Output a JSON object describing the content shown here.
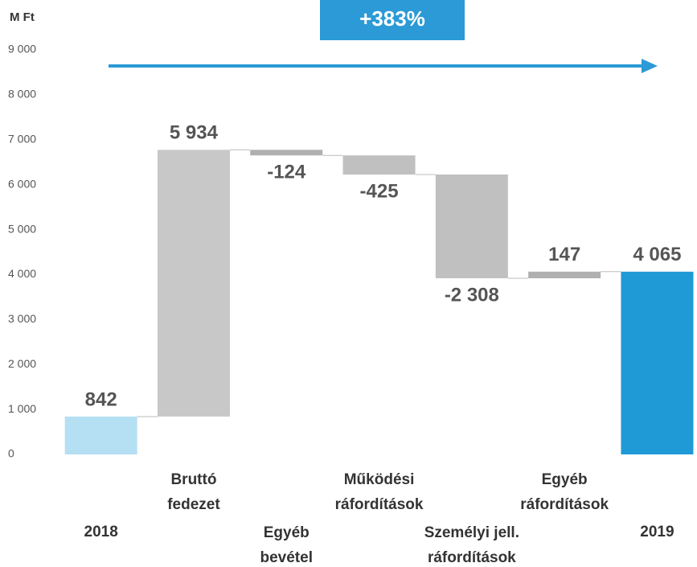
{
  "chart_data": {
    "type": "waterfall",
    "unit_label": "M Ft",
    "annotation": "+383%",
    "categories": [
      [
        "2018"
      ],
      [
        "Bruttó",
        "fedezet"
      ],
      [
        "Egyéb",
        "bevétel"
      ],
      [
        "Működési",
        "ráfordítások"
      ],
      [
        "Személyi jell.",
        "ráfordítások"
      ],
      [
        "Egyéb",
        "ráfordítások"
      ],
      [
        "2019"
      ]
    ],
    "values": [
      842,
      5934,
      -124,
      -425,
      -2308,
      147,
      4065
    ],
    "value_labels": [
      "842",
      "5 934",
      "-124",
      "-425",
      "-2 308",
      "147",
      "4 065"
    ],
    "is_total": [
      true,
      false,
      false,
      false,
      false,
      false,
      true
    ],
    "colors": [
      "#b5dff3",
      "#c8c8c8",
      "#b0b0b0",
      "#c0c0c0",
      "#c0c0c0",
      "#b0b0b0",
      "#1f9ad6"
    ],
    "ylim": [
      0,
      9000
    ],
    "yticks": [
      0,
      {
        "value": 1000,
        "label": "1 000"
      },
      {
        "value": 2000,
        "label": "2 000"
      },
      {
        "value": 3000,
        "label": "3 000"
      },
      {
        "value": 4000,
        "label": "4 000"
      },
      {
        "value": 5000,
        "label": "5 000"
      },
      {
        "value": 6000,
        "label": "6 000"
      },
      {
        "value": 7000,
        "label": "7 000"
      },
      {
        "value": 8000,
        "label": "8 000"
      },
      {
        "value": 9000,
        "label": "9 000"
      }
    ],
    "grid": false
  }
}
